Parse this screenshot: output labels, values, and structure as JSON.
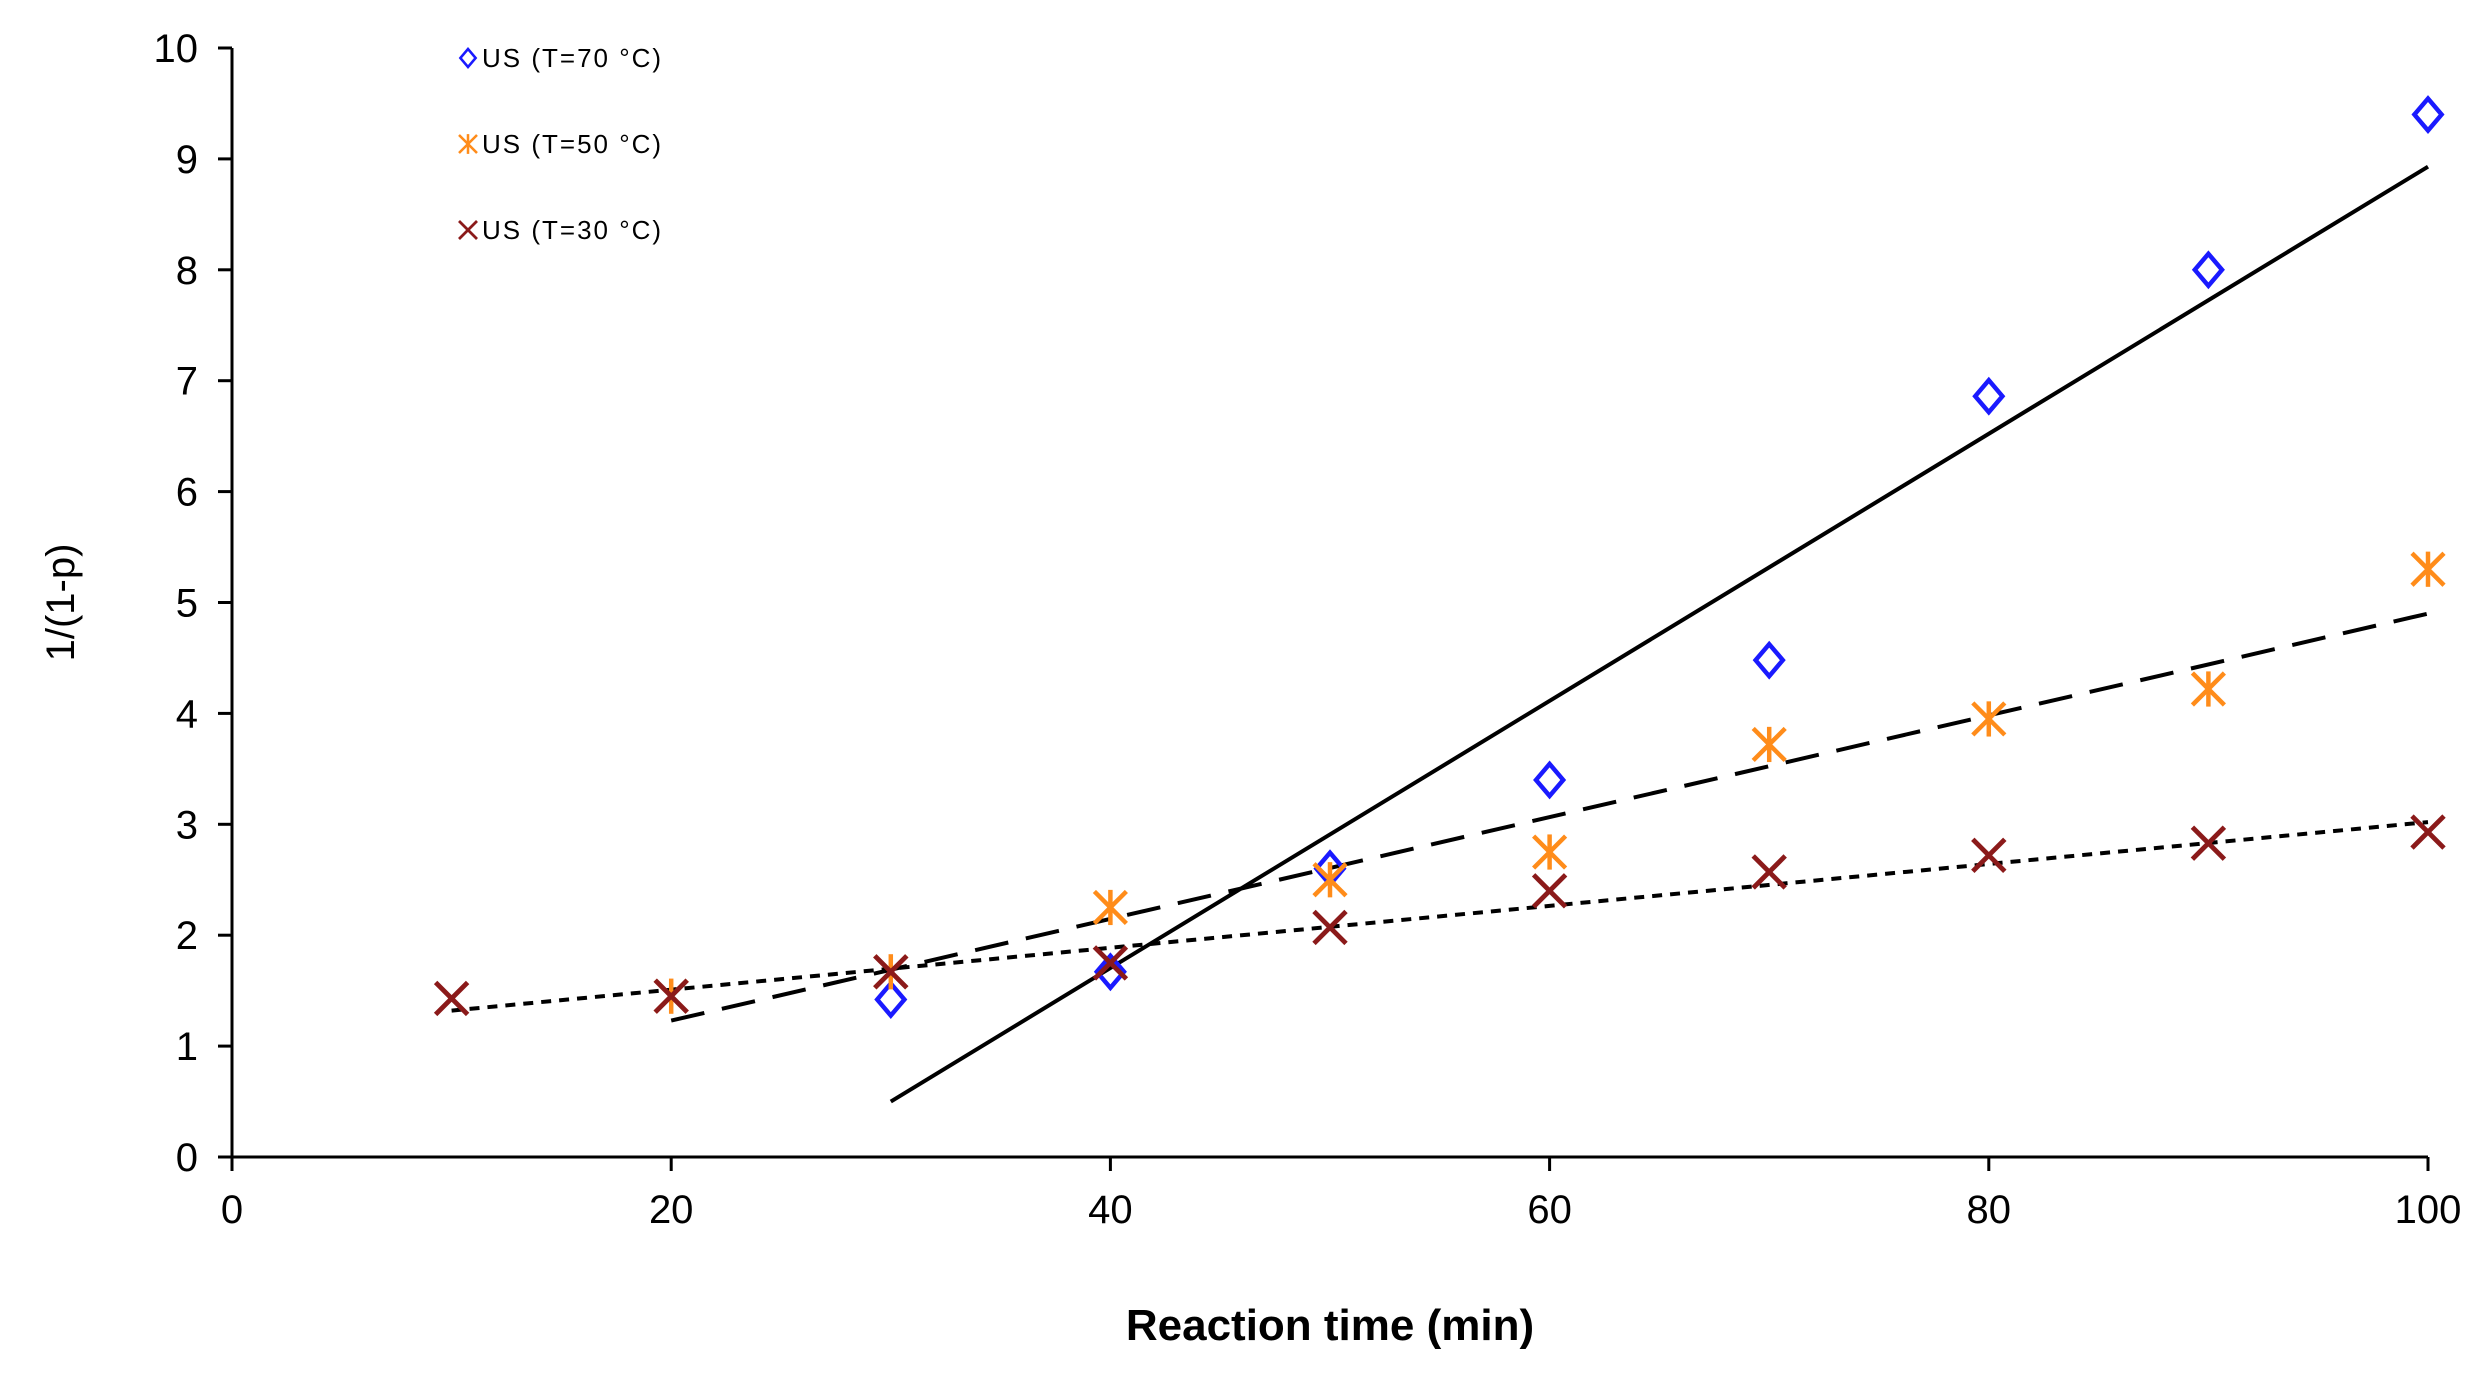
{
  "chart_data": {
    "type": "scatter",
    "xlabel": "Reaction time (min)",
    "ylabel": "1/(1-p)",
    "xlim": [
      0,
      100
    ],
    "ylim": [
      0,
      10
    ],
    "x_ticks": [
      0,
      20,
      40,
      60,
      80,
      100
    ],
    "y_ticks": [
      0,
      1,
      2,
      3,
      4,
      5,
      6,
      7,
      8,
      9,
      10
    ],
    "grid": false,
    "legend_position": "top-left",
    "series": [
      {
        "name": "US (T=70 °C)",
        "marker": "diamond",
        "color": "#1a1aff",
        "x": [
          30,
          40,
          50,
          60,
          70,
          80,
          90,
          100
        ],
        "y": [
          1.42,
          1.67,
          2.6,
          3.4,
          4.48,
          6.86,
          8.0,
          9.4
        ],
        "trendline": {
          "style": "solid",
          "x_range": [
            30,
            100
          ],
          "y_range": [
            0.5,
            8.93
          ]
        }
      },
      {
        "name": "US (T=50 °C)",
        "marker": "asterisk",
        "color": "#ff8c1a",
        "x": [
          20,
          30,
          40,
          50,
          60,
          70,
          80,
          90,
          100
        ],
        "y": [
          1.45,
          1.67,
          2.25,
          2.5,
          2.75,
          3.72,
          3.95,
          4.22,
          5.3
        ],
        "trendline": {
          "style": "dashed",
          "x_range": [
            20,
            100
          ],
          "y_range": [
            1.23,
            4.9
          ]
        }
      },
      {
        "name": "US (T=30 °C)",
        "marker": "x",
        "color": "#8b1a1a",
        "x": [
          10,
          20,
          30,
          40,
          50,
          60,
          70,
          80,
          90,
          100
        ],
        "y": [
          1.43,
          1.45,
          1.67,
          1.75,
          2.07,
          2.4,
          2.57,
          2.72,
          2.83,
          2.93
        ],
        "trendline": {
          "style": "dotted",
          "x_range": [
            10,
            100
          ],
          "y_range": [
            1.32,
            3.02
          ]
        }
      }
    ]
  }
}
